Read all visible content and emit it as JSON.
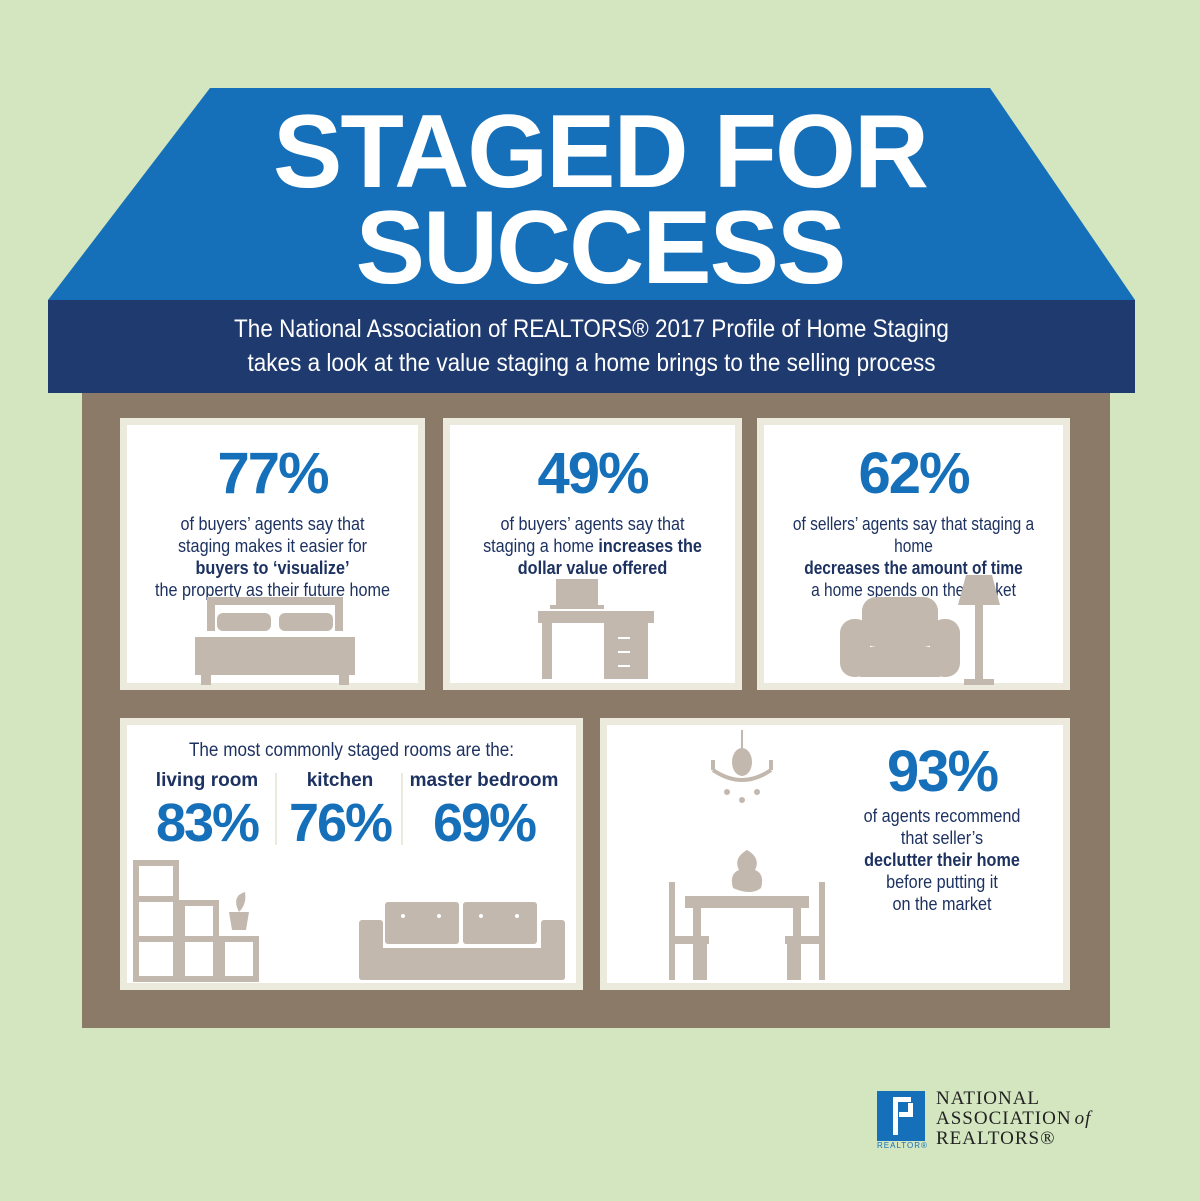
{
  "title": {
    "line1": "STAGED FOR",
    "line2": "SUCCESS"
  },
  "subtitle": {
    "line1": "The National Association of REALTORS® 2017 Profile of Home Staging",
    "line2": "takes a look at the value staging a home brings to the selling process"
  },
  "stats": [
    {
      "pct": "77%",
      "l1": "of buyers’ agents say that",
      "l2": "staging makes it easier for",
      "bold": "buyers to ‘visualize’",
      "l3": "the property as their future home",
      "icon": "bed-icon"
    },
    {
      "pct": "49%",
      "l1": "of buyers’ agents say that",
      "l2a": "staging a home ",
      "bold1": "increases the",
      "bold2": "dollar value offered",
      "icon": "desk-icon"
    },
    {
      "pct": "62%",
      "l1": "of sellers’ agents say that staging a home",
      "bold": "decreases the amount of time",
      "l3": "a home spends on the market",
      "icon": "armchair-lamp-icon"
    }
  ],
  "rooms": {
    "heading": "The most commonly staged rooms are the:",
    "items": [
      {
        "name": "living room",
        "pct": "83%"
      },
      {
        "name": "kitchen",
        "pct": "76%"
      },
      {
        "name": "master bedroom",
        "pct": "69%"
      }
    ]
  },
  "declutter": {
    "pct": "93%",
    "l1": "of agents recommend",
    "l2": "that seller’s",
    "bold": "declutter their home",
    "l3": "before putting it",
    "l4": "on the market"
  },
  "logo": {
    "mark": "REALTOR®",
    "line1": "NATIONAL",
    "line2": "ASSOCIATION",
    "of": "of",
    "line3": "REALTORS®"
  },
  "colors": {
    "background": "#d3e6bf",
    "roof": "#1570b9",
    "banner": "#1e3a6e",
    "house": "#8c7a69",
    "accent": "#1670b9",
    "text": "#1d3261",
    "furniture": "#c2b8ae"
  }
}
